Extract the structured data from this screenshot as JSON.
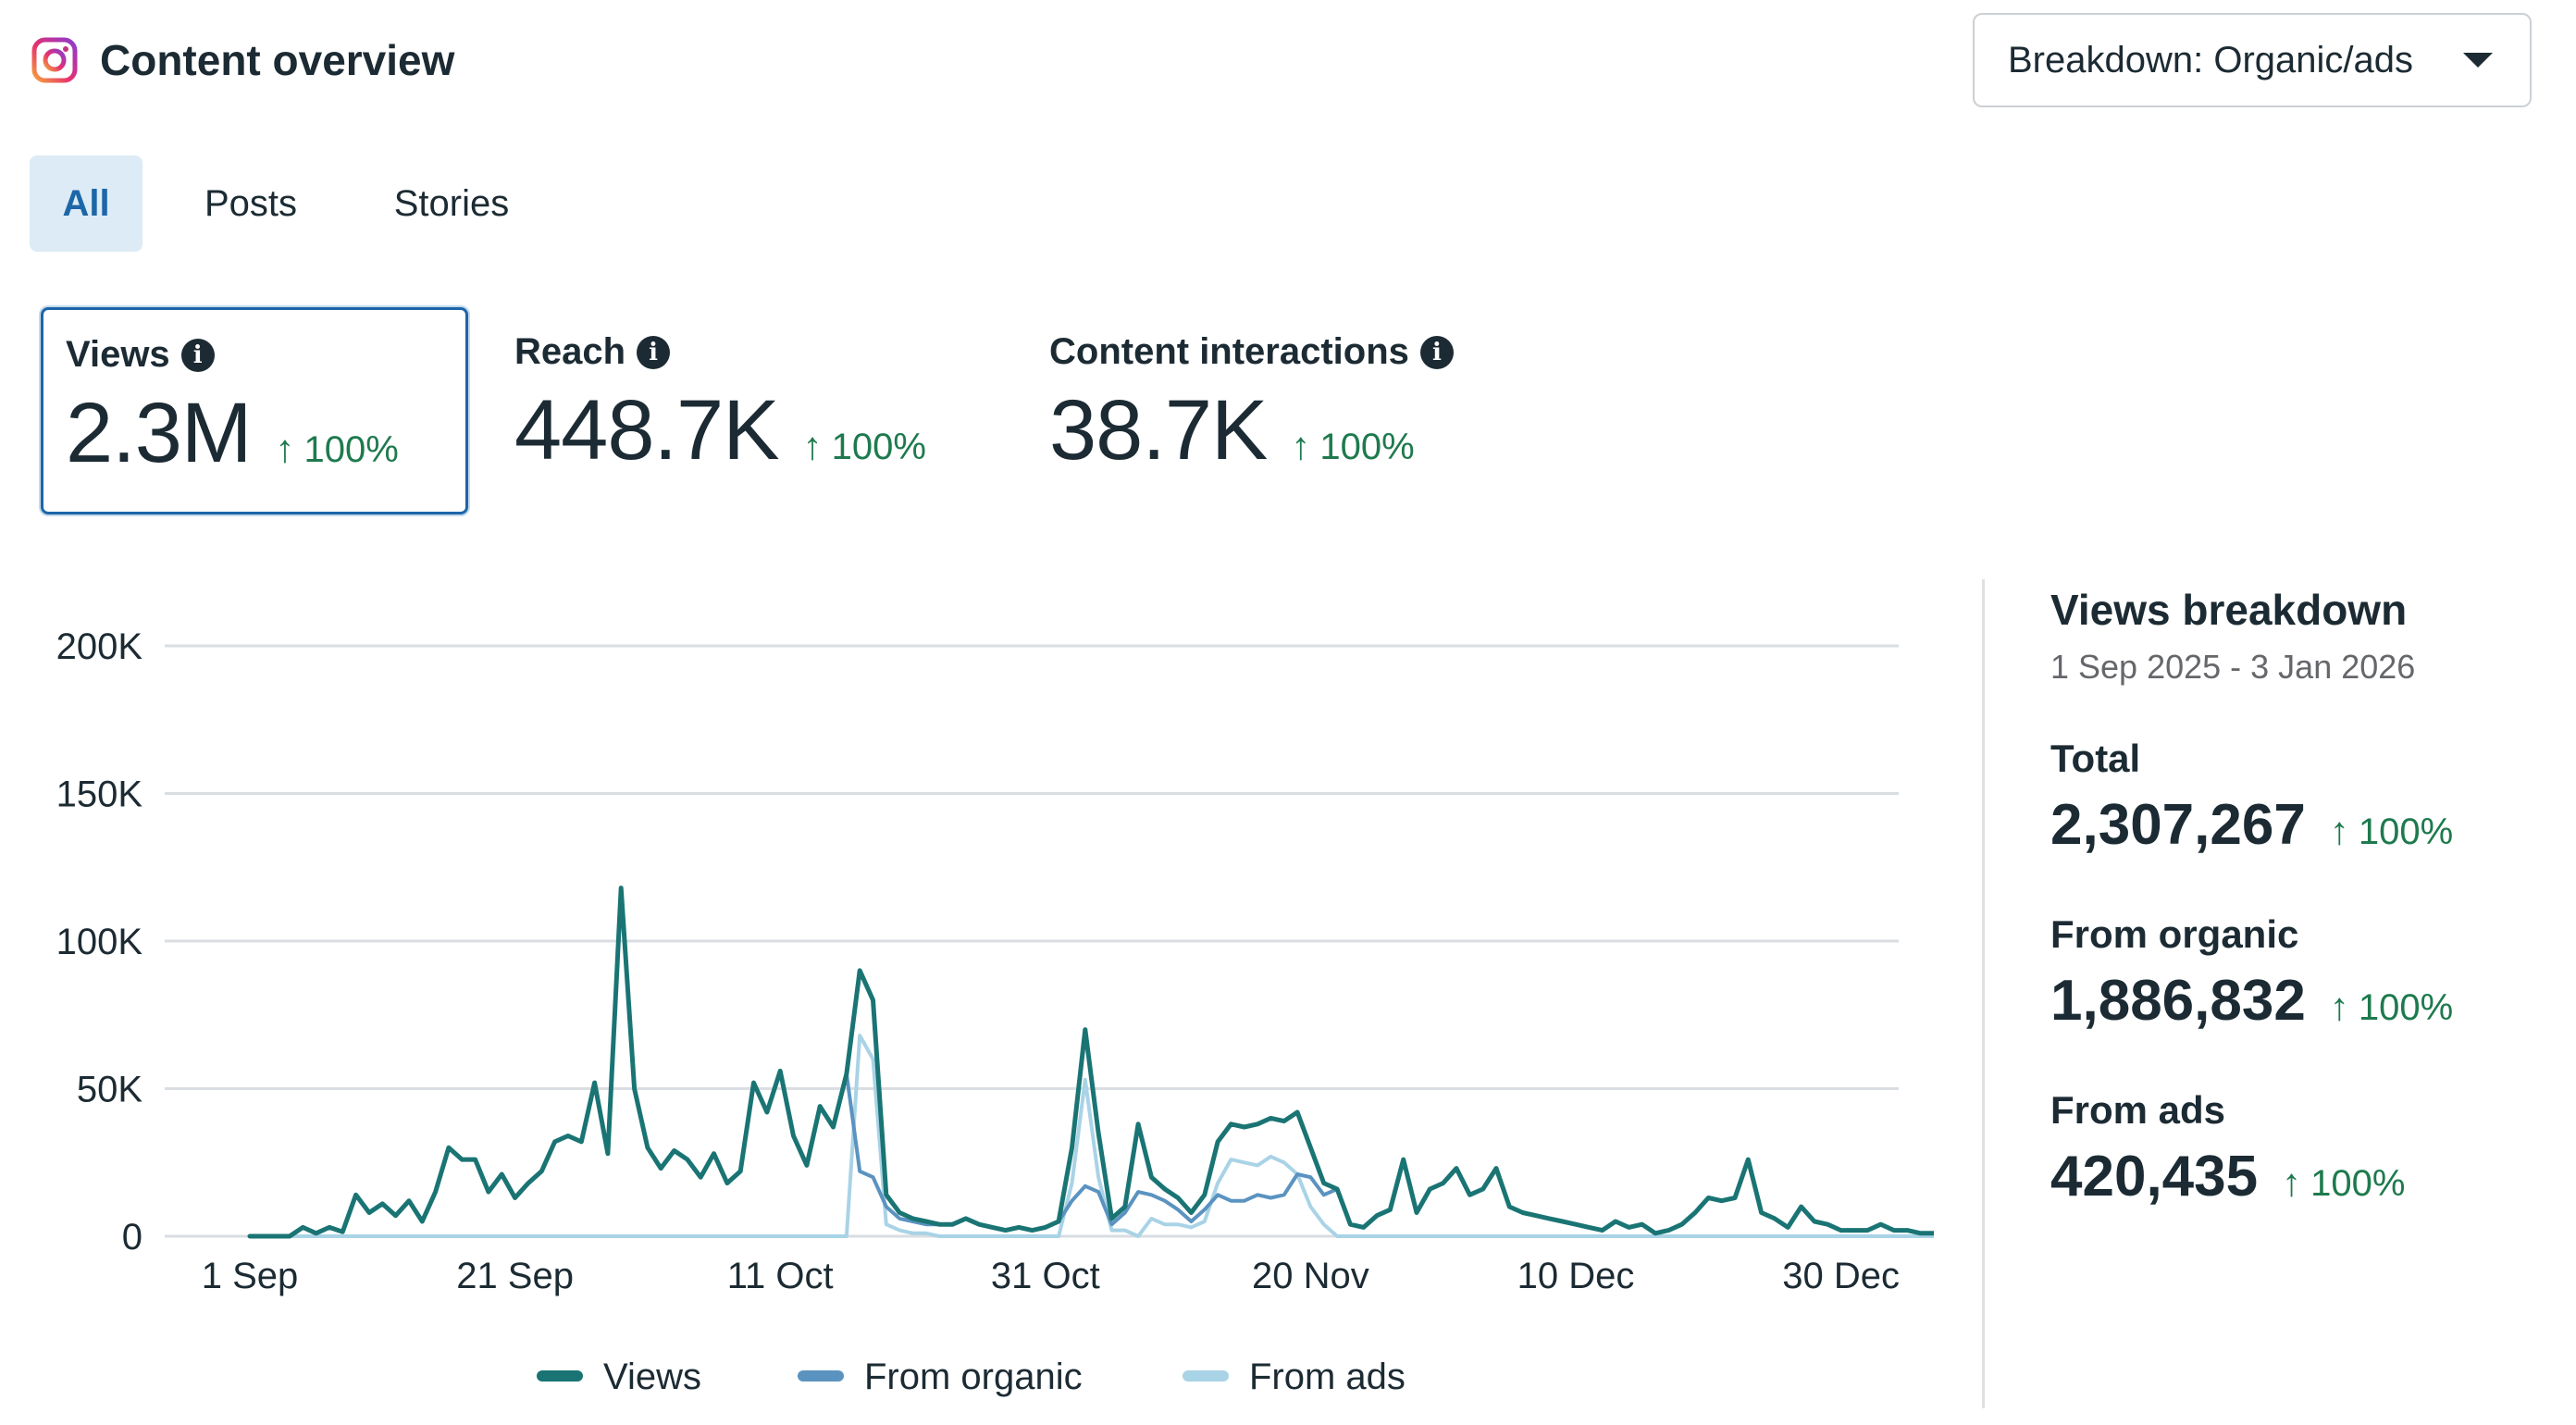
{
  "header": {
    "title": "Content overview",
    "breakdown_dropdown": "Breakdown: Organic/ads"
  },
  "tabs": [
    {
      "label": "All",
      "selected": true
    },
    {
      "label": "Posts",
      "selected": false
    },
    {
      "label": "Stories",
      "selected": false
    }
  ],
  "metrics": [
    {
      "label": "Views",
      "value": "2.3M",
      "change": "100%",
      "selected": true
    },
    {
      "label": "Reach",
      "value": "448.7K",
      "change": "100%",
      "selected": false
    },
    {
      "label": "Content interactions",
      "value": "38.7K",
      "change": "100%",
      "selected": false
    }
  ],
  "breakdown": {
    "title": "Views breakdown",
    "date_range": "1 Sep 2025 - 3 Jan 2026",
    "total": {
      "label": "Total",
      "value": "2,307,267",
      "change": "100%"
    },
    "organic": {
      "label": "From organic",
      "value": "1,886,832",
      "change": "100%"
    },
    "ads": {
      "label": "From ads",
      "value": "420,435",
      "change": "100%"
    }
  },
  "colors": {
    "views": "#1a7474",
    "organic": "#5b93c0",
    "ads": "#a9d3e6",
    "accent": "#1d66a8",
    "positive": "#1e7a4e"
  },
  "chart_data": {
    "type": "line",
    "title": "",
    "xlabel": "",
    "ylabel": "",
    "ylim": [
      0,
      200000
    ],
    "y_ticks": [
      {
        "value": 0,
        "label": "0"
      },
      {
        "value": 50000,
        "label": "50K"
      },
      {
        "value": 100000,
        "label": "100K"
      },
      {
        "value": 150000,
        "label": "150K"
      },
      {
        "value": 200000,
        "label": "200K"
      }
    ],
    "x_ticks": [
      {
        "day": 0,
        "label": "1 Sep"
      },
      {
        "day": 20,
        "label": "21 Sep"
      },
      {
        "day": 40,
        "label": "11 Oct"
      },
      {
        "day": 60,
        "label": "31 Oct"
      },
      {
        "day": 80,
        "label": "20 Nov"
      },
      {
        "day": 100,
        "label": "10 Dec"
      },
      {
        "day": 120,
        "label": "30 Dec"
      }
    ],
    "series": [
      {
        "name": "Views",
        "key": "views",
        "values": [
          0,
          0,
          0,
          0,
          3000,
          1000,
          3000,
          1500,
          14000,
          8000,
          11000,
          7000,
          12000,
          5000,
          15000,
          30000,
          26000,
          26000,
          15000,
          21000,
          13000,
          18000,
          22000,
          32000,
          34000,
          32000,
          52000,
          28000,
          118000,
          50000,
          30000,
          23000,
          29000,
          26000,
          20000,
          28000,
          18000,
          22000,
          52000,
          42000,
          56000,
          34000,
          24000,
          44000,
          37000,
          55000,
          90000,
          80000,
          14000,
          8000,
          6000,
          5000,
          4000,
          4000,
          6000,
          4000,
          3000,
          2000,
          3000,
          2000,
          3000,
          5000,
          30000,
          70000,
          35000,
          6000,
          10000,
          38000,
          20000,
          16000,
          13000,
          8000,
          14000,
          32000,
          38000,
          37000,
          38000,
          40000,
          39000,
          42000,
          30000,
          18000,
          16000,
          4000,
          3000,
          7000,
          9000,
          26000,
          8000,
          16000,
          18000,
          23000,
          14000,
          16000,
          23000,
          10000,
          8000,
          7000,
          6000,
          5000,
          4000,
          3000,
          2000,
          5000,
          3000,
          4000,
          1000,
          2000,
          4000,
          8000,
          13000,
          12000,
          13000,
          26000,
          8000,
          6000,
          3000,
          10000,
          5000,
          4000,
          2000,
          2000,
          2000,
          4000,
          2000,
          2000,
          1000,
          1000
        ]
      },
      {
        "name": "From organic",
        "key": "organic",
        "values": [
          0,
          0,
          0,
          0,
          3000,
          1000,
          3000,
          1500,
          14000,
          8000,
          11000,
          7000,
          12000,
          5000,
          15000,
          30000,
          26000,
          26000,
          15000,
          21000,
          13000,
          18000,
          22000,
          32000,
          34000,
          32000,
          52000,
          28000,
          118000,
          50000,
          30000,
          23000,
          29000,
          26000,
          20000,
          28000,
          18000,
          22000,
          52000,
          42000,
          56000,
          34000,
          24000,
          44000,
          37000,
          55000,
          22000,
          20000,
          10000,
          6000,
          5000,
          4000,
          4000,
          4000,
          6000,
          4000,
          3000,
          2000,
          3000,
          2000,
          3000,
          5000,
          12000,
          17000,
          15000,
          4000,
          8000,
          15000,
          14000,
          12000,
          9000,
          5000,
          9000,
          14000,
          12000,
          12000,
          14000,
          13000,
          14000,
          21000,
          20000,
          14000,
          16000,
          4000,
          3000,
          7000,
          9000,
          26000,
          8000,
          16000,
          18000,
          23000,
          14000,
          16000,
          23000,
          10000,
          8000,
          7000,
          6000,
          5000,
          4000,
          3000,
          2000,
          5000,
          3000,
          4000,
          1000,
          2000,
          4000,
          8000,
          13000,
          12000,
          13000,
          26000,
          8000,
          6000,
          3000,
          10000,
          5000,
          4000,
          2000,
          2000,
          2000,
          4000,
          2000,
          2000,
          1000,
          1000
        ]
      },
      {
        "name": "From ads",
        "key": "ads",
        "values": [
          0,
          0,
          0,
          0,
          0,
          0,
          0,
          0,
          0,
          0,
          0,
          0,
          0,
          0,
          0,
          0,
          0,
          0,
          0,
          0,
          0,
          0,
          0,
          0,
          0,
          0,
          0,
          0,
          0,
          0,
          0,
          0,
          0,
          0,
          0,
          0,
          0,
          0,
          0,
          0,
          0,
          0,
          0,
          0,
          0,
          0,
          68000,
          60000,
          4000,
          2000,
          1000,
          1000,
          0,
          0,
          0,
          0,
          0,
          0,
          0,
          0,
          0,
          0,
          18000,
          53000,
          20000,
          2000,
          2000,
          0,
          6000,
          4000,
          4000,
          3000,
          5000,
          18000,
          26000,
          25000,
          24000,
          27000,
          25000,
          21000,
          10000,
          4000,
          0,
          0,
          0,
          0,
          0,
          0,
          0,
          0,
          0,
          0,
          0,
          0,
          0,
          0,
          0,
          0,
          0,
          0,
          0,
          0,
          0,
          0,
          0,
          0,
          0,
          0,
          0,
          0,
          0,
          0,
          0,
          0,
          0,
          0,
          0,
          0,
          0,
          0,
          0,
          0,
          0,
          0,
          0,
          0,
          0,
          0
        ]
      }
    ]
  }
}
